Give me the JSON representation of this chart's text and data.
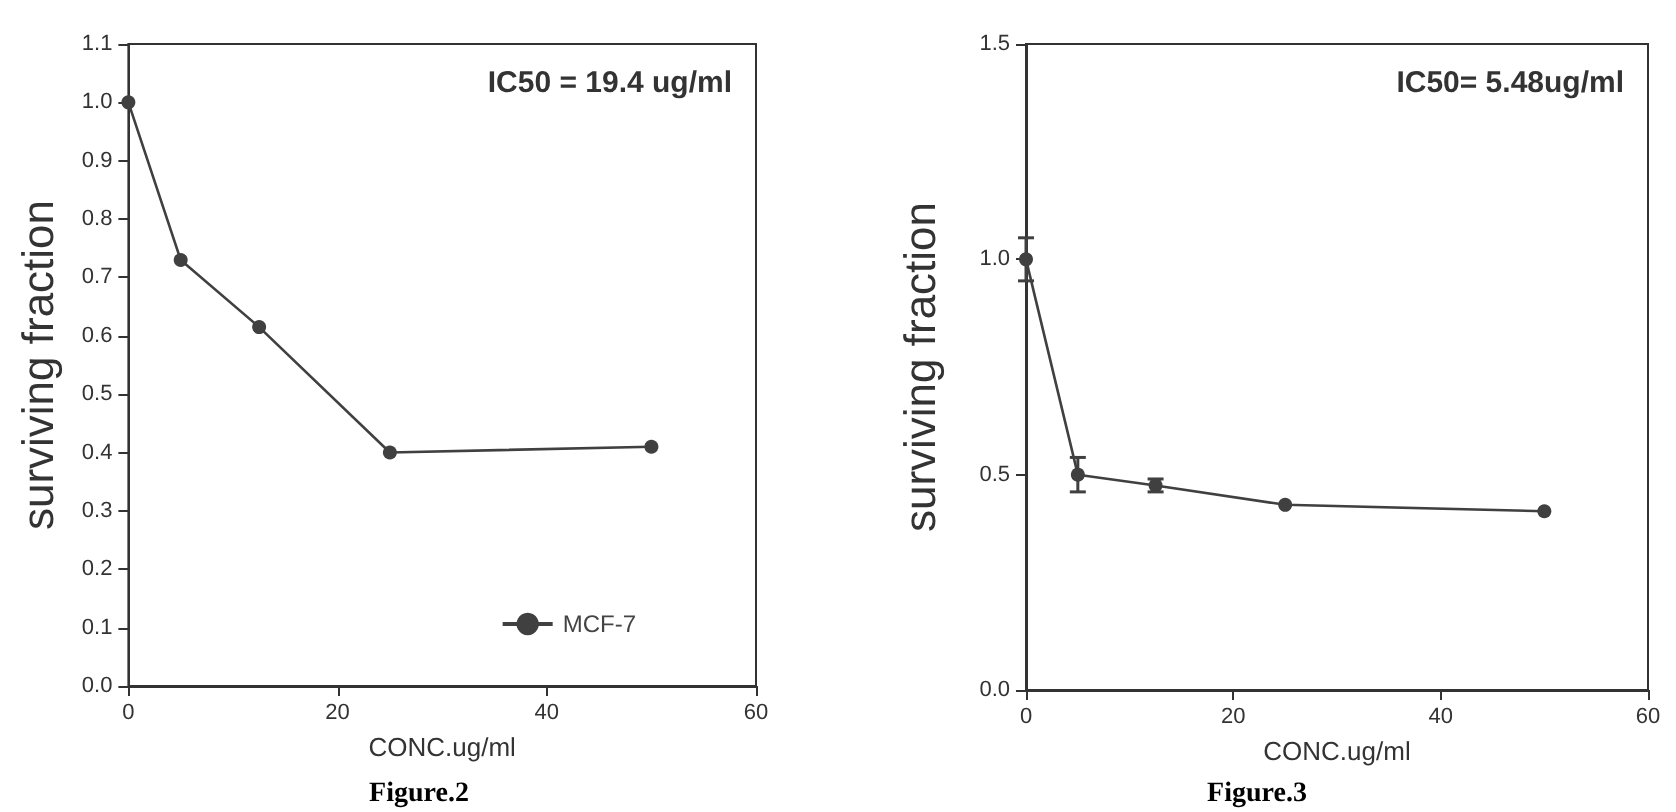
{
  "chart_data": [
    {
      "type": "line",
      "xlabel": "CONC.ug/ml",
      "ylabel": "surviving fraction",
      "annotations": [
        "IC50 = 19.4 ug/ml",
        "Figure.2"
      ],
      "x": [
        0,
        5,
        12.5,
        25,
        50
      ],
      "series": [
        {
          "name": "MCF-7",
          "color": "#404040",
          "values": [
            1.0,
            0.73,
            0.615,
            0.4,
            0.41
          ]
        }
      ],
      "xlim": [
        0,
        60
      ],
      "xticks": [
        0,
        20,
        40,
        60
      ],
      "ylim": [
        0,
        1.1
      ],
      "yticks": [
        {
          "value": 0,
          "label": "0.0"
        },
        {
          "value": 0.1,
          "label": "0.1"
        },
        {
          "value": 0.2,
          "label": "0.2"
        },
        {
          "value": 0.3,
          "label": "0.3"
        },
        {
          "value": 0.4,
          "label": "0.4"
        },
        {
          "value": 0.5,
          "label": "0.5"
        },
        {
          "value": 0.6,
          "label": "0.6"
        },
        {
          "value": 0.7,
          "label": "0.7"
        },
        {
          "value": 0.8,
          "label": "0.8"
        },
        {
          "value": 0.9,
          "label": "0.9"
        },
        {
          "value": 1,
          "label": "1.0"
        },
        {
          "value": 1.1,
          "label": "1.1"
        }
      ],
      "grid": false,
      "legend": "bottom right",
      "marker": "circle",
      "line_style": "solid"
    },
    {
      "type": "line",
      "xlabel": "CONC.ug/ml",
      "ylabel": "surviving fraction",
      "annotations": [
        "IC50= 5.48ug/ml",
        "Figure.3"
      ],
      "x": [
        0,
        5,
        12.5,
        25,
        50
      ],
      "series": [
        {
          "color": "#404040",
          "values": [
            1.0,
            0.5,
            0.475,
            0.43,
            0.415
          ],
          "errors": [
            0.05,
            0.04,
            0.015,
            null,
            null
          ]
        }
      ],
      "xlim": [
        0,
        60
      ],
      "xticks": [
        0,
        20,
        40,
        60
      ],
      "ylim": [
        0,
        1.5
      ],
      "yticks": [
        {
          "value": 0,
          "label": "0.0"
        },
        {
          "value": 0.5,
          "label": "0.5"
        },
        {
          "value": 1,
          "label": "1.0"
        },
        {
          "value": 1.5,
          "label": "1.5"
        }
      ],
      "grid": false,
      "legend": false,
      "marker": "circle",
      "line_style": "solid"
    }
  ]
}
